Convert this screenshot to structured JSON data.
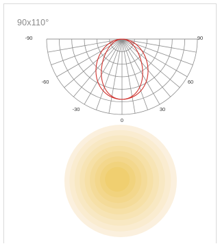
{
  "beam_label": "90x110°",
  "polar_ticks": {
    "left_90": "-90",
    "right_90": "90",
    "left_60": "-60",
    "right_60": "60",
    "left_30": "-30",
    "right_30": "30",
    "zero": "0"
  },
  "colors": {
    "grid": "#8c8c8c",
    "curve": "#d0312d",
    "glow_center": "#f0cf70",
    "glow_edge": "#fbf0de"
  }
}
